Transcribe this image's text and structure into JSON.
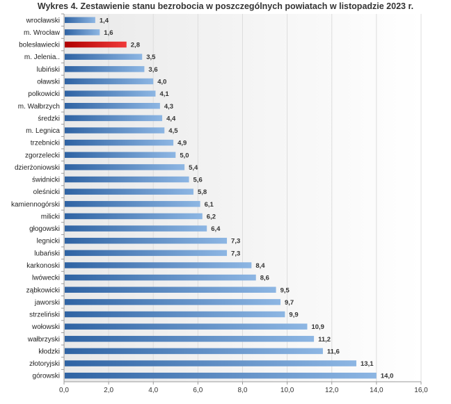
{
  "chart_data": {
    "type": "bar",
    "orientation": "horizontal",
    "title": "Wykres 4. Zestawienie stanu bezrobocia w poszczególnych powiatach w listopadzie 2023 r.",
    "categories": [
      "wrocławski",
      "m. Wrocław",
      "bolesławiecki",
      "m. Jelenia..",
      "lubiński",
      "oławski",
      "polkowicki",
      "m. Wałbrzych",
      "średzki",
      "m. Legnica",
      "trzebnicki",
      "zgorzelecki",
      "dzierżoniowski",
      "świdnicki",
      "oleśnicki",
      "kamiennogórski",
      "milicki",
      "głogowski",
      "legnicki",
      "lubański",
      "karkonoski",
      "lwówecki",
      "ząbkowicki",
      "jaworski",
      "strzeliński",
      "wołowski",
      "wałbrzyski",
      "kłodzki",
      "złotoryjski",
      "górowski"
    ],
    "values": [
      1.4,
      1.6,
      2.8,
      3.5,
      3.6,
      4.0,
      4.1,
      4.3,
      4.4,
      4.5,
      4.9,
      5.0,
      5.4,
      5.6,
      5.8,
      6.1,
      6.2,
      6.4,
      7.3,
      7.3,
      8.4,
      8.6,
      9.5,
      9.7,
      9.9,
      10.9,
      11.2,
      11.6,
      13.1,
      14.0
    ],
    "value_labels": [
      "1,4",
      "1,6",
      "2,8",
      "3,5",
      "3,6",
      "4,0",
      "4,1",
      "4,3",
      "4,4",
      "4,5",
      "4,9",
      "5,0",
      "5,4",
      "5,6",
      "5,8",
      "6,1",
      "6,2",
      "6,4",
      "7,3",
      "7,3",
      "8,4",
      "8,6",
      "9,5",
      "9,7",
      "9,9",
      "10,9",
      "11,2",
      "11,6",
      "13,1",
      "14,0"
    ],
    "highlight": "bolesławiecki",
    "xlim": [
      0,
      16
    ],
    "ticks": [
      0,
      2,
      4,
      6,
      8,
      10,
      12,
      14,
      16
    ],
    "tick_labels": [
      "0,0",
      "2,0",
      "4,0",
      "6,0",
      "8,0",
      "10,0",
      "12,0",
      "14,0",
      "16,0"
    ],
    "grid": true,
    "legend": "none",
    "colors": {
      "bar_dark": "#2f63a3",
      "bar_light": "#8db6e3",
      "highlight_dark": "#b00000",
      "highlight_light": "#f03a3a",
      "grid": "#dddddd",
      "axis": "#999999"
    }
  }
}
